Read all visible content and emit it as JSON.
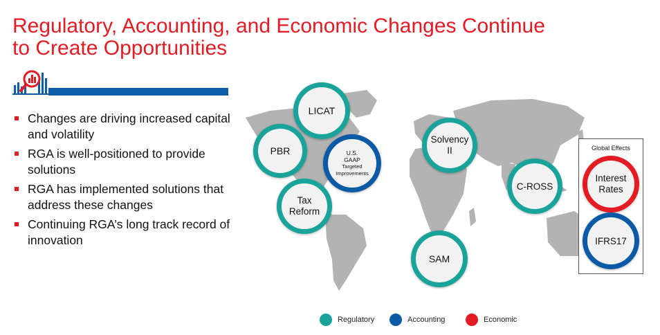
{
  "title": {
    "line1": "Regulatory, Accounting, and Economic Changes Continue",
    "line2": "to Create Opportunities"
  },
  "bullets": [
    "Changes are driving increased capital and volatility",
    "RGA is well-positioned to provide solutions",
    "RGA has implemented solutions that address these changes",
    "Continuing RGA’s long track record of innovation"
  ],
  "circles": {
    "licat": "LICAT",
    "pbr": "PBR",
    "us_gaap": [
      "U.S.",
      "GAAP",
      "Targeted",
      "Improvements"
    ],
    "tax_reform": [
      "Tax",
      "Reform"
    ],
    "solvency": [
      "Solvency",
      "II"
    ],
    "c_ross": "C-ROSS",
    "sam": "SAM",
    "interest_rates": [
      "Interest",
      "Rates"
    ],
    "ifrs17": "IFRS17"
  },
  "global_effects_label": "Global Effects",
  "legend": {
    "regulatory": "Regulatory",
    "accounting": "Accounting",
    "economic": "Economic"
  },
  "colors": {
    "title_red": "#e31b23",
    "regulatory_teal": "#1aa39a",
    "accounting_blue": "#0b5aa5",
    "economic_red": "#e31b23",
    "bar_blue": "#0d5ea8",
    "map_gray": "#b3b3b3"
  }
}
